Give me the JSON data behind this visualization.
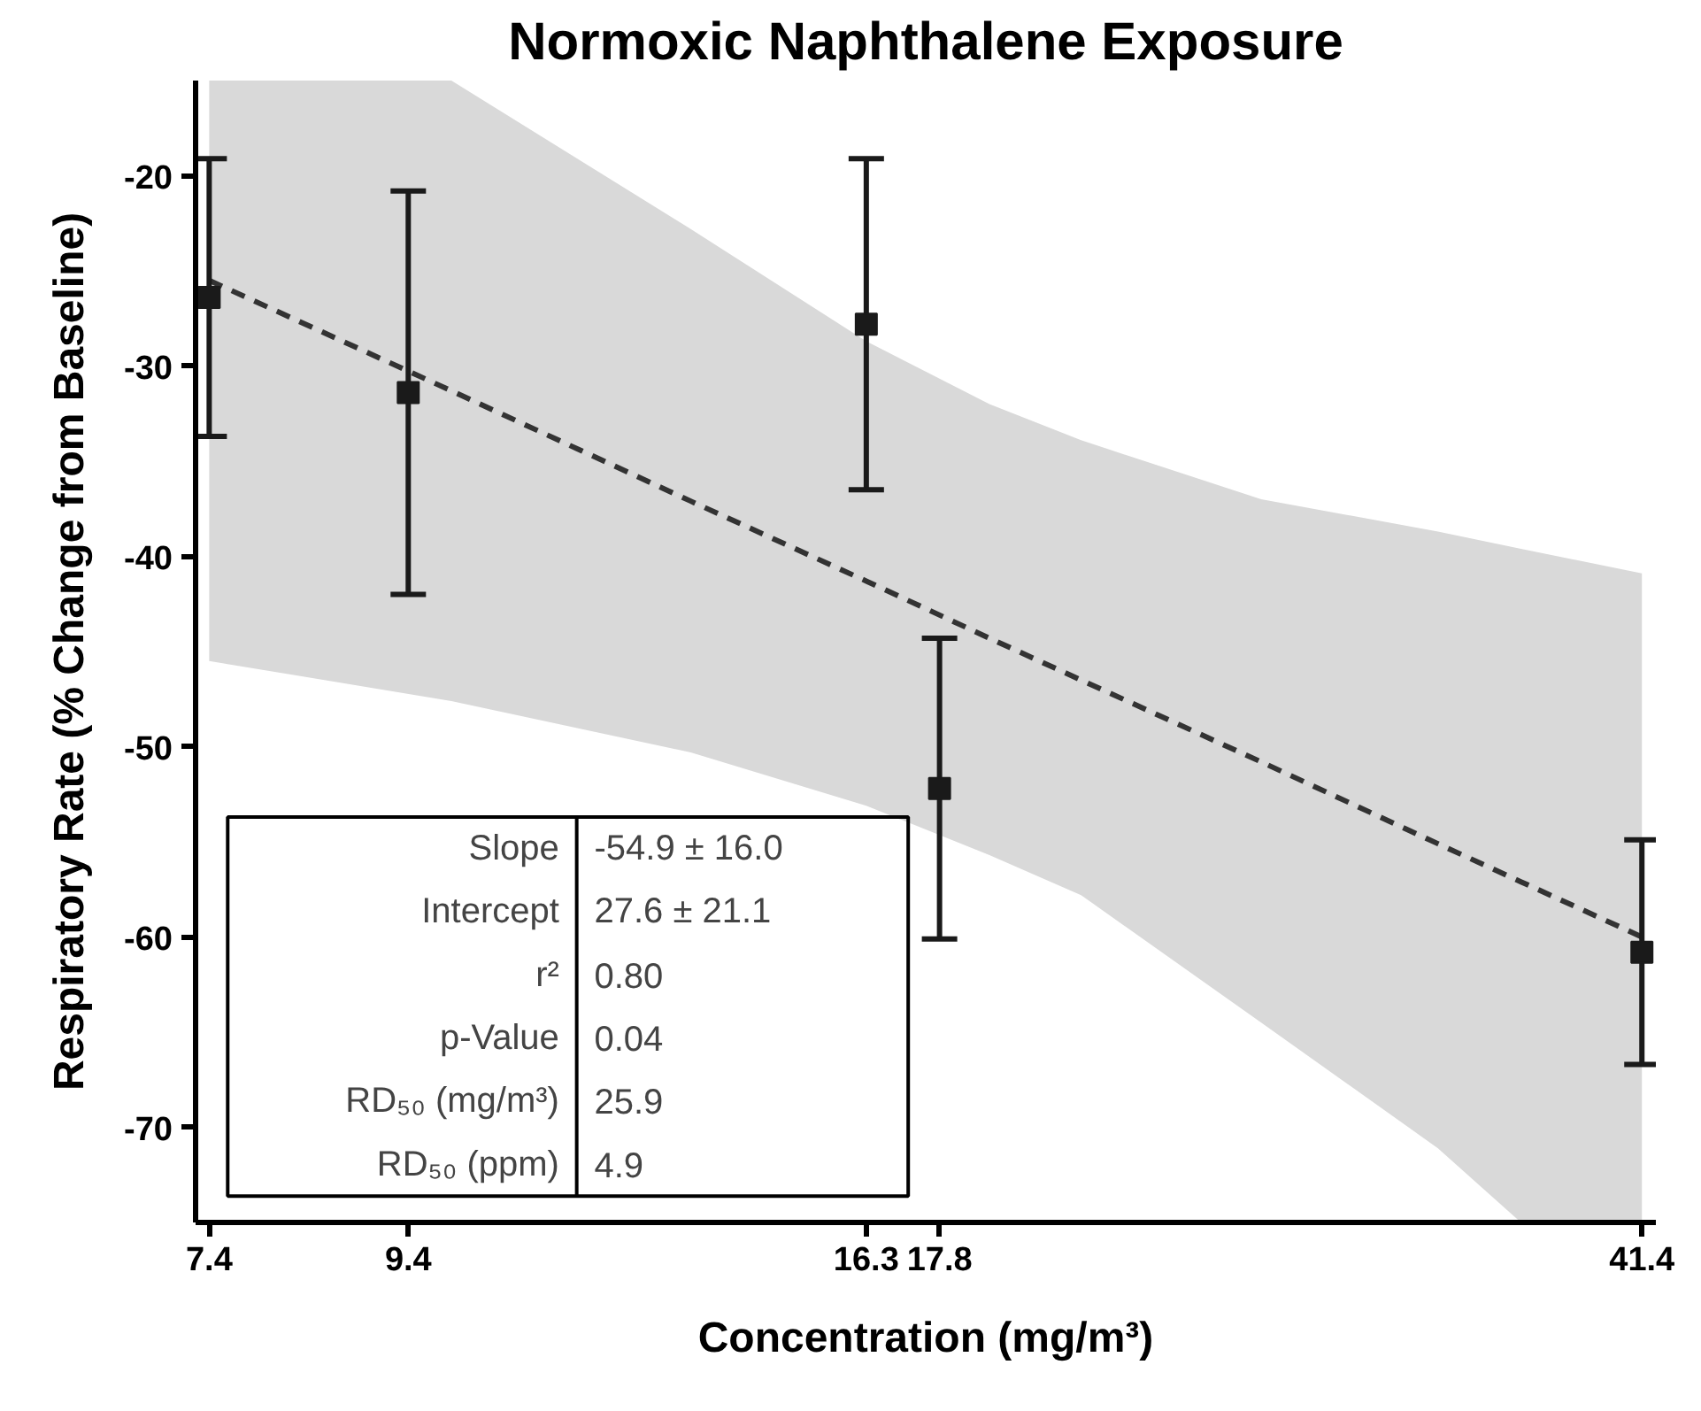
{
  "chart_data": {
    "type": "scatter",
    "title": "Normoxic Naphthalene Exposure",
    "xlabel": "Concentration (mg/m³)",
    "ylabel": "Respiratory Rate (% Change from Baseline)",
    "log": "x",
    "xlim": [
      7.28,
      42.1
    ],
    "xticks": [
      7.4,
      9.4,
      16.3,
      17.8,
      41.4
    ],
    "ylim": [
      -75,
      -15
    ],
    "yticks": [
      -70,
      -60,
      -50,
      -40,
      -30,
      -20
    ],
    "grid": false,
    "series": [
      {
        "type": "line",
        "color": "#333333",
        "line_style": "dashed",
        "marker": "none",
        "x": [
          7.4,
          9.9,
          13.2,
          16.3,
          18.9,
          21.1,
          26.2,
          32.4,
          35.8,
          41.4
        ],
        "values": [
          -25.5,
          -31.3,
          -37.1,
          -41.3,
          -44.3,
          -46.5,
          -50.8,
          -55.1,
          -57.1,
          -60.0
        ],
        "lower": [
          -45.5,
          -47.6,
          -50.3,
          -53.1,
          -55.7,
          -57.8,
          -64.5,
          -71.1,
          -75,
          -75
        ],
        "upper": [
          -15,
          -15,
          -22.8,
          -28.7,
          -32.0,
          -33.9,
          -37.0,
          -38.7,
          -39.6,
          -40.9
        ]
      },
      {
        "type": "scatter",
        "color": "#1a1a1a",
        "marker": "square",
        "x": [
          7.4,
          9.4,
          16.3,
          17.8,
          41.4
        ],
        "values": [
          -26.4,
          -31.4,
          -27.8,
          -52.2,
          -60.8
        ],
        "errors": [
          7.3,
          10.6,
          8.7,
          7.9,
          5.9
        ]
      }
    ],
    "annotations": [
      "Slope",
      "-54.9 ± 16.0",
      "Intercept",
      "27.6 ± 21.1",
      "r²",
      "0.80",
      "p-Value",
      "0.04",
      "RD₅₀ (mg/m³)",
      "25.9",
      "RD₅₀ (ppm)",
      "4.9"
    ]
  }
}
